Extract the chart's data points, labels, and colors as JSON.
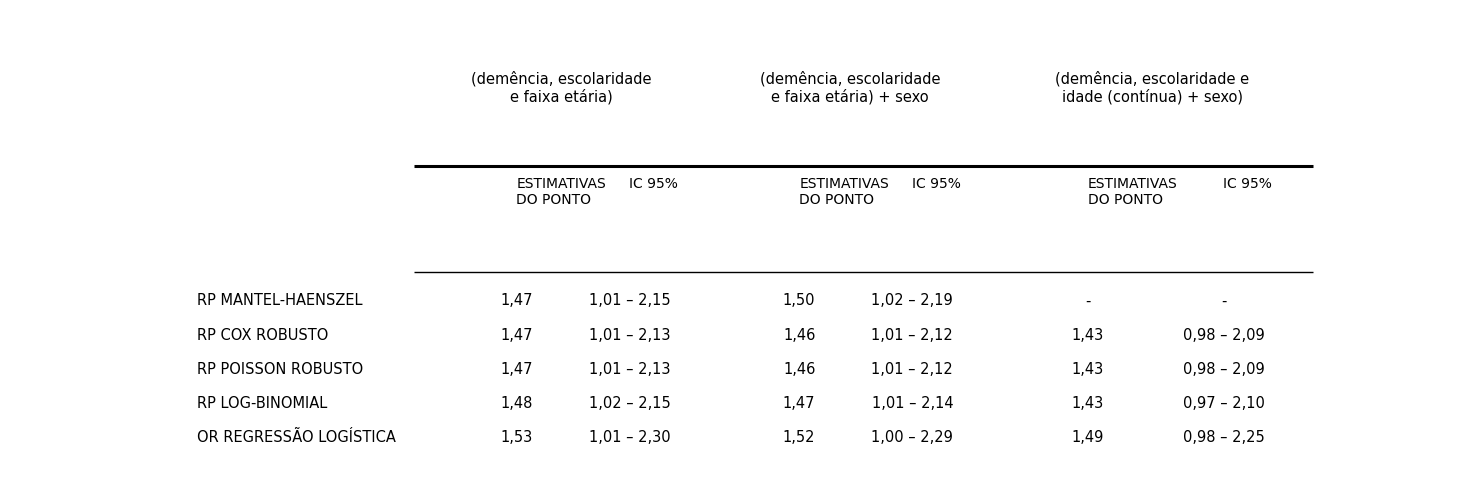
{
  "col_headers_top": [
    "(demência, escolaridade\ne faixa etária)",
    "(demência, escolaridade\ne faixa etária) + sexo",
    "(demência, escolaridade e\nidade (contínua) + sexo)"
  ],
  "col_headers_sub": [
    "ESTIMATIVAS\nDO PONTO",
    "IC 95%",
    "ESTIMATIVAS\nDO PONTO",
    "IC 95%",
    "ESTIMATIVAS\nDO PONTO",
    "IC 95%"
  ],
  "rows": [
    {
      "label": "RP MANTEL-HAENSZEL",
      "values": [
        "1,47",
        "1,01 – 2,15",
        "1,50",
        "1,02 – 2,19",
        "-",
        "-"
      ]
    },
    {
      "label": "RP COX ROBUSTO",
      "values": [
        "1,47",
        "1,01 – 2,13",
        "1,46",
        "1,01 – 2,12",
        "1,43",
        "0,98 – 2,09"
      ]
    },
    {
      "label": "RP POISSON ROBUSTO",
      "values": [
        "1,47",
        "1,01 – 2,13",
        "1,46",
        "1,01 – 2,12",
        "1,43",
        "0,98 – 2,09"
      ]
    },
    {
      "label": "RP LOG-BINOMIAL",
      "values": [
        "1,48",
        "1,02 – 2,15",
        "1,47",
        "1,01 – 2,14",
        "1,43",
        "0,97 – 2,10"
      ]
    },
    {
      "label": "OR REGRESSÃO LOGÍSTICA",
      "values": [
        "1,53",
        "1,01 – 2,30",
        "1,52",
        "1,00 – 2,29",
        "1,49",
        "0,98 – 2,25"
      ]
    }
  ],
  "bg_color": "#ffffff",
  "text_color": "#000000",
  "font_size_top": 10.5,
  "font_size_sub": 10.0,
  "font_size_data": 10.5,
  "font_size_row_label": 10.5,
  "line_thick": 2.2,
  "line_thin": 1.0
}
